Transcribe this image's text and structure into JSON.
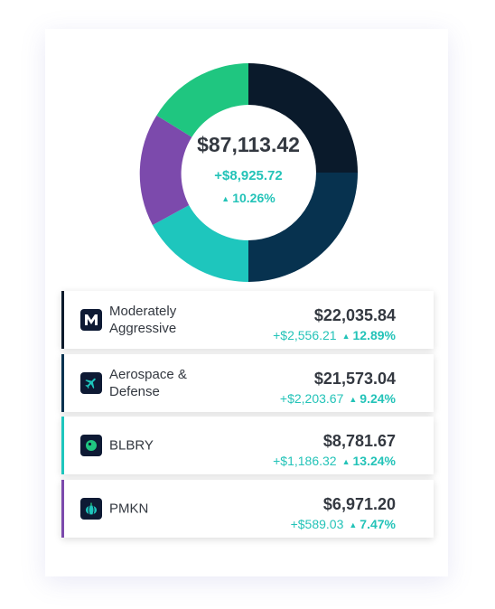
{
  "portfolio": {
    "total": "$87,113.42",
    "gain": "+$8,925.72",
    "pct": "10.26%"
  },
  "colors": {
    "navy_dark": "#0a1a2b",
    "navy": "#07324f",
    "teal": "#1ec6bd",
    "purple": "#7c4aac",
    "green": "#1fc680",
    "gain_text": "#23c3b8"
  },
  "holdings": [
    {
      "name": "Moderately Aggressive",
      "value": "$22,035.84",
      "gain": "+$2,556.21",
      "pct": "12.89%",
      "icon": "m-logo-icon",
      "color": "#0a1a2b"
    },
    {
      "name": "Aerospace & Defense",
      "value": "$21,573.04",
      "gain": "+$2,203.67",
      "pct": "9.24%",
      "icon": "airplane-icon",
      "color": "#07324f"
    },
    {
      "name": "BLBRY",
      "value": "$8,781.67",
      "gain": "+$1,186.32",
      "pct": "13.24%",
      "icon": "blueberry-icon",
      "color": "#1ec6bd"
    },
    {
      "name": "PMKN",
      "value": "$6,971.20",
      "gain": "+$589.03",
      "pct": "7.47%",
      "icon": "pumpkin-icon",
      "color": "#7c4aac"
    }
  ]
}
